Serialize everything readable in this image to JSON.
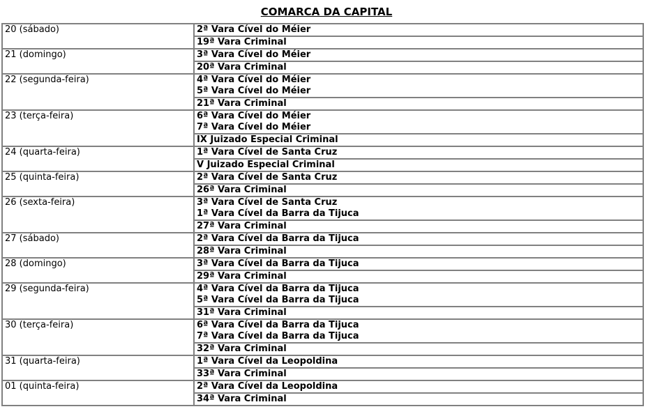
{
  "title": "COMARCA DA CAPITAL",
  "colors": {
    "background": "#ffffff",
    "text": "#000000",
    "table_border": "#808080"
  },
  "table": {
    "columns": [
      "date",
      "courts"
    ],
    "groups": [
      {
        "date": "20 (sábado)",
        "cells": [
          [
            "2ª Vara Cível do Méier"
          ],
          [
            "19ª Vara Criminal"
          ]
        ]
      },
      {
        "date": "21 (domingo)",
        "cells": [
          [
            "3ª Vara Cível do Méier"
          ],
          [
            "20ª Vara Criminal"
          ]
        ]
      },
      {
        "date": "22 (segunda-feira)",
        "cells": [
          [
            "4ª Vara Cível do Méier",
            "5ª Vara Cível do Méier"
          ],
          [
            "21ª Vara Criminal"
          ]
        ]
      },
      {
        "date": "23 (terça-feira)",
        "cells": [
          [
            "6ª Vara Cível do Méier",
            "7ª Vara Cível do Méier"
          ],
          [
            "IX Juizado Especial Criminal"
          ]
        ]
      },
      {
        "date": "24 (quarta-feira)",
        "cells": [
          [
            "1ª Vara Cível de Santa Cruz"
          ],
          [
            "V Juizado Especial Criminal"
          ]
        ]
      },
      {
        "date": "25 (quinta-feira)",
        "cells": [
          [
            "2ª Vara Cível de Santa Cruz"
          ],
          [
            "26ª Vara Criminal"
          ]
        ]
      },
      {
        "date": "26 (sexta-feira)",
        "cells": [
          [
            "3ª Vara Cível de Santa Cruz",
            "1ª Vara Cível da Barra da Tijuca"
          ],
          [
            "27ª Vara Criminal"
          ]
        ]
      },
      {
        "date": "27 (sábado)",
        "cells": [
          [
            "2ª Vara Cível da Barra da Tijuca"
          ],
          [
            "28ª Vara Criminal"
          ]
        ]
      },
      {
        "date": "28 (domingo)",
        "cells": [
          [
            "3ª Vara Cível da Barra da Tijuca"
          ],
          [
            "29ª Vara Criminal"
          ]
        ]
      },
      {
        "date": "29 (segunda-feira)",
        "cells": [
          [
            "4ª Vara Cível da Barra da Tijuca",
            "5ª Vara Cível da Barra da Tijuca"
          ],
          [
            "31ª Vara Criminal"
          ]
        ]
      },
      {
        "date": "30 (terça-feira)",
        "cells": [
          [
            "6ª Vara Cível da Barra da Tijuca",
            "7ª Vara Cível da Barra da Tijuca"
          ],
          [
            "32ª Vara Criminal"
          ]
        ]
      },
      {
        "date": "31 (quarta-feira)",
        "cells": [
          [
            "1ª Vara Cível da Leopoldina"
          ],
          [
            "33ª Vara Criminal"
          ]
        ]
      },
      {
        "date": "01 (quinta-feira)",
        "cells": [
          [
            "2ª Vara Cível da Leopoldina"
          ],
          [
            "34ª Vara Criminal"
          ]
        ]
      }
    ]
  }
}
